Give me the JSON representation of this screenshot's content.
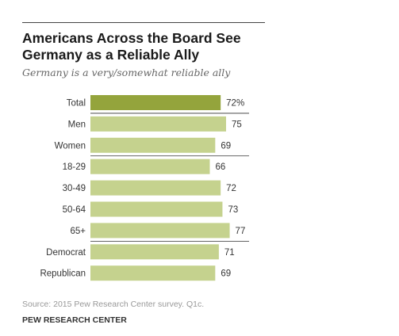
{
  "header": {
    "title": "Americans Across the Board See Germany as a Reliable Ally",
    "subtitle": "Germany is a very/somewhat reliable ally"
  },
  "footer": {
    "source": "Source: 2015 Pew Research Center survey. Q1c.",
    "brand": "PEW RESEARCH CENTER"
  },
  "colors": {
    "highlight_bar": "#94a43c",
    "bar": "#c5d28e",
    "separator": "#333333"
  },
  "chart_data": {
    "type": "bar",
    "orientation": "horizontal",
    "title": "Americans Across the Board See Germany as a Reliable Ally",
    "subtitle": "Germany is a very/somewhat reliable ally",
    "categories": [
      "Total",
      "Men",
      "Women",
      "18-29",
      "30-49",
      "50-64",
      "65+",
      "Democrat",
      "Republican"
    ],
    "values": [
      72,
      75,
      69,
      66,
      72,
      73,
      77,
      71,
      69
    ],
    "value_labels": [
      "72%",
      "75",
      "69",
      "66",
      "72",
      "73",
      "77",
      "71",
      "69"
    ],
    "highlight": [
      true,
      false,
      false,
      false,
      false,
      false,
      false,
      false,
      false
    ],
    "group_separators_after": [
      0,
      2,
      6
    ],
    "xlim": [
      0,
      100
    ],
    "grid": false,
    "legend": "none"
  }
}
